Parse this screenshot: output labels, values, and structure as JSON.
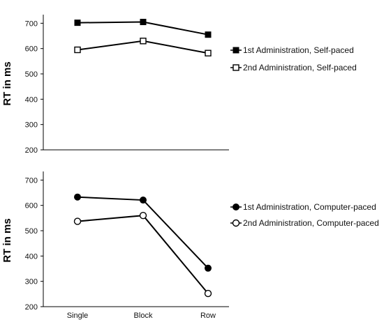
{
  "chart_data": [
    {
      "type": "line",
      "categories": [
        "Single",
        "Block",
        "Row"
      ],
      "ylabel": "RT in ms",
      "ylim": [
        200,
        700
      ],
      "yticks": [
        200,
        300,
        400,
        500,
        600,
        700
      ],
      "show_x_tick_labels": false,
      "grid": false,
      "legend_position": "right",
      "series": [
        {
          "name": "1st Administration, Self-paced",
          "marker": "filled-square",
          "values": [
            702,
            705,
            655
          ],
          "errors": [
            8,
            8,
            10
          ]
        },
        {
          "name": "2nd Administration, Self-paced",
          "marker": "open-square",
          "values": [
            595,
            630,
            582
          ],
          "errors": [
            8,
            8,
            10
          ]
        }
      ]
    },
    {
      "type": "line",
      "categories": [
        "Single",
        "Block",
        "Row"
      ],
      "ylabel": "RT in ms",
      "ylim": [
        200,
        700
      ],
      "yticks": [
        200,
        300,
        400,
        500,
        600,
        700
      ],
      "show_x_tick_labels": true,
      "grid": false,
      "legend_position": "right",
      "series": [
        {
          "name": "1st Administration, Computer-paced",
          "marker": "filled-circle",
          "values": [
            633,
            621,
            352
          ],
          "errors": [
            9,
            9,
            10
          ]
        },
        {
          "name": "2nd Administration, Computer-paced",
          "marker": "open-circle",
          "values": [
            537,
            560,
            252
          ],
          "errors": [
            8,
            8,
            9
          ]
        }
      ]
    }
  ]
}
